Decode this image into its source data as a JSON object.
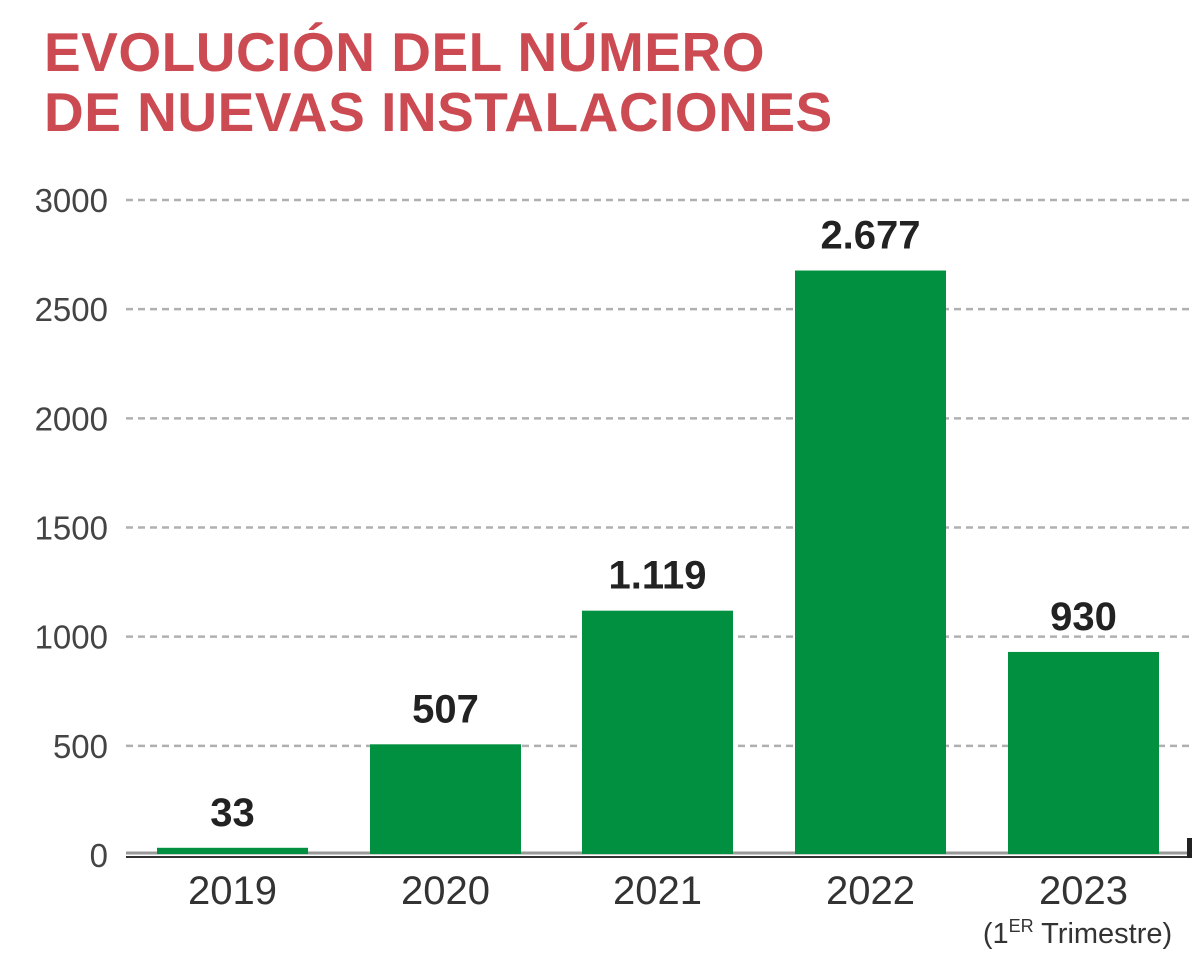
{
  "title_lines": [
    "EVOLUCIÓN DEL NÚMERO",
    "DE NUEVAS INSTALACIONES"
  ],
  "colors": {
    "title": "#cc4a52",
    "bar": "#009040",
    "grid": "#b0b0b0",
    "text": "#333333",
    "label": "#222222"
  },
  "chart_data": {
    "type": "bar",
    "title": "EVOLUCIÓN DEL NÚMERO DE NUEVAS INSTALACIONES",
    "categories": [
      "2019",
      "2020",
      "2021",
      "2022",
      "2023"
    ],
    "category_note": {
      "prefix": "(1",
      "sup": "ER",
      "suffix": " Trimestre)"
    },
    "values": [
      33,
      507,
      1119,
      2677,
      930
    ],
    "data_labels": [
      "33",
      "507",
      "1.119",
      "2.677",
      "930"
    ],
    "yticks": [
      0,
      500,
      1000,
      1500,
      2000,
      2500,
      3000
    ],
    "ylim": [
      0,
      3000
    ],
    "grid": true,
    "grid_style": "dashed",
    "legend": "none"
  }
}
